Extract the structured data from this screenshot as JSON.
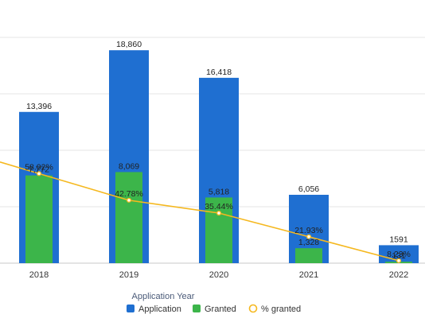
{
  "chart_data": {
    "type": "bar",
    "categories": [
      "2018",
      "2019",
      "2020",
      "2021",
      "2022"
    ],
    "series": [
      {
        "name": "Application",
        "type": "bar",
        "values": [
          13396,
          18860,
          16418,
          6056,
          1591
        ],
        "labels": [
          "13,396",
          "18,860",
          "16,418",
          "6,056",
          "1591"
        ],
        "color": "#1f6fd1"
      },
      {
        "name": "Granted",
        "type": "bar",
        "values": [
          7772,
          8069,
          5818,
          1328,
          131
        ],
        "labels": [
          "7,772",
          "8,069",
          "5,818",
          "1,328",
          "131"
        ],
        "color": "#3cb54a"
      },
      {
        "name": "% granted",
        "type": "line",
        "values": [
          58.02,
          42.78,
          35.44,
          21.93,
          8.23
        ],
        "labels": [
          "58.02%",
          "42.78%",
          "35.44%",
          "21.93%",
          "8.23%"
        ],
        "color": "#f5b81f"
      }
    ],
    "xlabel": "Application Year",
    "ylim": [
      0,
      20000
    ],
    "pct_ylim": [
      0,
      100
    ],
    "grid": true,
    "legend_position": "bottom"
  }
}
